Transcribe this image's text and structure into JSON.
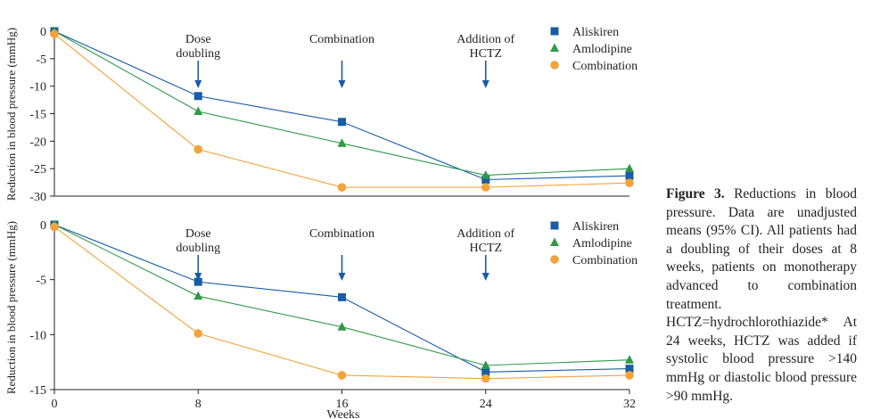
{
  "colors": {
    "aliskiren": "#1a5ca6",
    "amlodipine": "#2e9a48",
    "combination": "#f2a33a",
    "annotation": "#1a5ca6",
    "axis": "#231f20"
  },
  "legend_markers": {
    "aliskiren": "square",
    "amlodipine": "triangle",
    "combination": "circle"
  },
  "chart_data": [
    {
      "type": "line",
      "ylabel": "Reduction in blood pressure (mmHg)",
      "xlabel": "",
      "x": [
        0,
        8,
        16,
        24,
        32
      ],
      "xlim": [
        0,
        32
      ],
      "ylim": [
        -30,
        0
      ],
      "yticks": [
        0,
        -5,
        -10,
        -15,
        -20,
        -25,
        -30
      ],
      "xticks": [],
      "legend_position": "top-right",
      "series": [
        {
          "name": "Aliskiren",
          "marker": "square",
          "color_key": "aliskiren",
          "values": [
            0,
            -11.8,
            -16.5,
            -27.0,
            -26.3
          ]
        },
        {
          "name": "Amlodipine",
          "marker": "triangle",
          "color_key": "amlodipine",
          "values": [
            0,
            -14.6,
            -20.4,
            -26.2,
            -25.0
          ]
        },
        {
          "name": "Combination",
          "marker": "circle",
          "color_key": "combination",
          "values": [
            -0.5,
            -21.5,
            -28.4,
            -28.4,
            -27.6
          ]
        }
      ],
      "annotations": [
        {
          "x": 8,
          "lines": [
            "Dose",
            "doubling"
          ]
        },
        {
          "x": 16,
          "lines": [
            "Combination"
          ]
        },
        {
          "x": 24,
          "lines": [
            "Addition of",
            "HCTZ"
          ]
        }
      ]
    },
    {
      "type": "line",
      "ylabel": "Reduction in blood pressure (mmHg)",
      "xlabel": "Weeks",
      "x": [
        0,
        8,
        16,
        24,
        32
      ],
      "xlim": [
        0,
        32
      ],
      "ylim": [
        -15,
        0
      ],
      "yticks": [
        0,
        -5,
        -10,
        -15
      ],
      "xticks": [
        0,
        8,
        16,
        24,
        32
      ],
      "legend_position": "top-right",
      "series": [
        {
          "name": "Aliskiren",
          "marker": "square",
          "color_key": "aliskiren",
          "values": [
            0,
            -5.2,
            -6.6,
            -13.4,
            -13.1
          ]
        },
        {
          "name": "Amlodipine",
          "marker": "triangle",
          "color_key": "amlodipine",
          "values": [
            0,
            -6.5,
            -9.3,
            -12.8,
            -12.3
          ]
        },
        {
          "name": "Combination",
          "marker": "circle",
          "color_key": "combination",
          "values": [
            -0.2,
            -9.9,
            -13.7,
            -14.0,
            -13.7
          ]
        }
      ],
      "annotations": [
        {
          "x": 8,
          "lines": [
            "Dose",
            "doubling"
          ]
        },
        {
          "x": 16,
          "lines": [
            "Combination"
          ]
        },
        {
          "x": 24,
          "lines": [
            "Addition of",
            "HCTZ"
          ]
        }
      ]
    }
  ],
  "caption": {
    "label": "Figure 3.",
    "text": "Reductions in blood pressure. Data are unadjusted means (95% CI). All patients had a doubling of their doses at 8 weeks, patients on monotherapy advanced to combination treatment. HCTZ=hydrochlorothiazide* At 24 weeks, HCTZ was added if systolic blood pressure >140 mmHg or diastolic blood pressure >90 mmHg."
  }
}
